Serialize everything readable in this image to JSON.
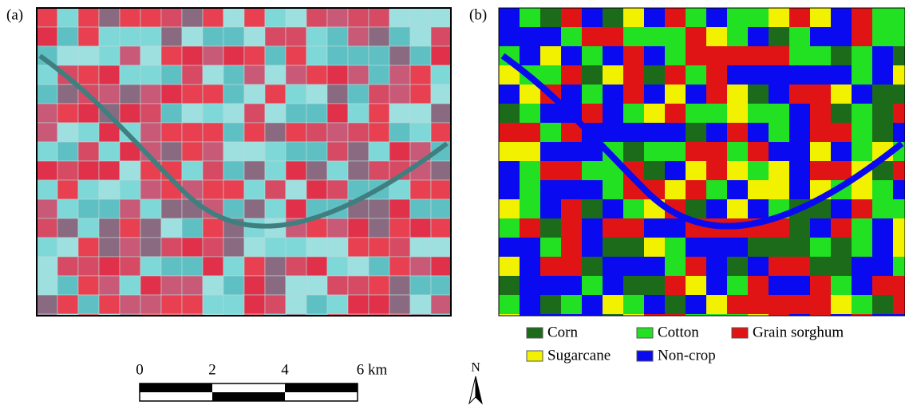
{
  "panels": [
    {
      "label": "(a)"
    },
    {
      "label": "(b)"
    }
  ],
  "legend": [
    {
      "name": "Corn",
      "color": "#1b6b1b"
    },
    {
      "name": "Cotton",
      "color": "#22e022"
    },
    {
      "name": "Grain sorghum",
      "color": "#e01414"
    },
    {
      "name": "Sugarcane",
      "color": "#f2f200"
    },
    {
      "name": "Non-crop",
      "color": "#0a0af0"
    }
  ],
  "scale_bar": {
    "labels": [
      "0",
      "2",
      "4",
      "6 km"
    ]
  },
  "north_label": "N"
}
